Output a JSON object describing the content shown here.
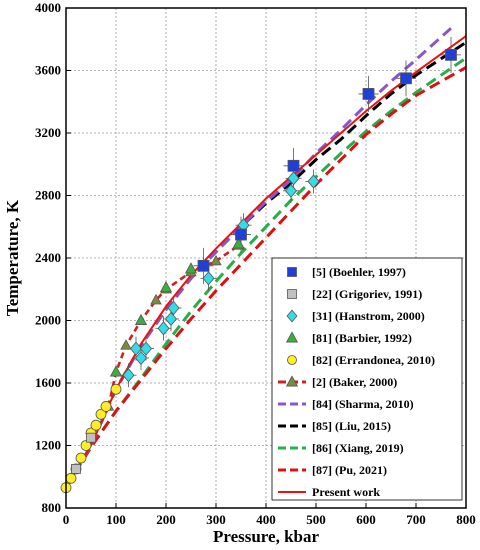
{
  "chart_data": {
    "type": "scatter",
    "xlabel": "Pressure, kbar",
    "ylabel": "Temperature, K",
    "xlim": [
      0,
      800
    ],
    "ylim": [
      800,
      4000
    ],
    "x_ticks": [
      "0",
      "100",
      "200",
      "300",
      "400",
      "500",
      "600",
      "700",
      "800"
    ],
    "y_ticks": [
      "800",
      "1200",
      "1600",
      "2000",
      "2400",
      "2800",
      "3200",
      "3600",
      "4000"
    ],
    "x_tick_values": [
      0,
      100,
      200,
      300,
      400,
      500,
      600,
      700,
      800
    ],
    "y_tick_values": [
      800,
      1200,
      1600,
      2000,
      2400,
      2800,
      3200,
      3600,
      4000
    ],
    "grid": true,
    "legend_position": "lower-right",
    "colors": {
      "boehler": "#1f3fd6",
      "grigoriev": "#c0c0c0",
      "hanstrom": "#33dde8",
      "barbier": "#3cae3c",
      "errandonea": "#ffee22",
      "baker": "#cc2222",
      "baker_marker": "#7a8c3a",
      "sharma": "#8855cc",
      "liu": "#000000",
      "xiang": "#22b04a",
      "pu": "#dd1111",
      "present": "#ee1111"
    },
    "series": [
      {
        "name": "[5] (Boehler, 1997)",
        "marker": "square",
        "color": "#1f3fd6",
        "x": [
          275,
          350,
          455,
          605,
          680,
          770
        ],
        "y": [
          2350,
          2550,
          2990,
          3450,
          3550,
          3700
        ]
      },
      {
        "name": "[22] (Grigoriev, 1991)",
        "marker": "square",
        "color": "#c0c0c0",
        "x": [
          20,
          50
        ],
        "y": [
          1050,
          1250
        ]
      },
      {
        "name": "[31] (Hanstrom, 2000)",
        "marker": "diamond",
        "color": "#33dde8",
        "x": [
          125,
          140,
          150,
          160,
          195,
          210,
          215,
          285,
          355,
          450,
          455,
          495
        ],
        "y": [
          1650,
          1820,
          1760,
          1820,
          1950,
          2010,
          2080,
          2270,
          2610,
          2830,
          2910,
          2890
        ]
      },
      {
        "name": "[81] (Barbier, 1992)",
        "marker": "triangle",
        "color": "#3cae3c",
        "x": [
          100,
          150,
          200,
          250,
          345
        ],
        "y": [
          1670,
          2000,
          2210,
          2330,
          2490
        ]
      },
      {
        "name": "[82] (Errandonea, 2010)",
        "marker": "circle",
        "color": "#ffee22",
        "x": [
          0,
          10,
          20,
          30,
          40,
          50,
          60,
          70,
          80,
          100
        ],
        "y": [
          930,
          990,
          1050,
          1120,
          1200,
          1280,
          1330,
          1400,
          1450,
          1560
        ]
      },
      {
        "name": "[2] (Baker, 2000)",
        "line": "dashed",
        "marker": "triangle",
        "color": "#cc2222",
        "x": [
          85,
          100,
          120,
          150,
          180,
          200,
          250,
          300,
          345
        ],
        "y": [
          1450,
          1670,
          1840,
          2000,
          2130,
          2200,
          2310,
          2380,
          2480
        ]
      },
      {
        "name": "[84] (Sharma, 2010)",
        "line": "dashed",
        "color": "#8855cc",
        "x": [
          0,
          50,
          100,
          150,
          200,
          250,
          300,
          350,
          400,
          450,
          500,
          550,
          600,
          650,
          700,
          770
        ],
        "y": [
          930,
          1200,
          1560,
          1840,
          2070,
          2270,
          2440,
          2600,
          2760,
          2900,
          3070,
          3220,
          3380,
          3530,
          3670,
          3870
        ]
      },
      {
        "name": "[85] (Liu, 2015)",
        "line": "dashed",
        "color": "#000000",
        "x": [
          0,
          50,
          100,
          150,
          200,
          250,
          300,
          350,
          400,
          450,
          500,
          550,
          600,
          650,
          700,
          800
        ],
        "y": [
          930,
          1200,
          1560,
          1840,
          2070,
          2270,
          2440,
          2600,
          2750,
          2880,
          3030,
          3160,
          3310,
          3450,
          3570,
          3780
        ]
      },
      {
        "name": "[86] (Xiang, 2019)",
        "line": "dashed",
        "color": "#22b04a",
        "x": [
          0,
          50,
          100,
          150,
          200,
          250,
          300,
          350,
          400,
          450,
          500,
          550,
          600,
          650,
          700,
          800
        ],
        "y": [
          930,
          1190,
          1420,
          1630,
          1850,
          2060,
          2250,
          2430,
          2600,
          2770,
          2920,
          3070,
          3210,
          3340,
          3460,
          3680
        ]
      },
      {
        "name": "[87] (Pu, 2021)",
        "line": "dashed",
        "color": "#dd1111",
        "x": [
          0,
          50,
          100,
          150,
          200,
          250,
          300,
          350,
          400,
          450,
          500,
          550,
          600,
          650,
          700,
          800
        ],
        "y": [
          930,
          1190,
          1420,
          1620,
          1820,
          2010,
          2190,
          2360,
          2530,
          2700,
          2870,
          3030,
          3190,
          3320,
          3440,
          3620
        ]
      },
      {
        "name": "Present work",
        "line": "solid",
        "color": "#ee1111",
        "x": [
          0,
          50,
          100,
          150,
          200,
          250,
          300,
          350,
          400,
          450,
          500,
          550,
          600,
          650,
          700,
          800
        ],
        "y": [
          930,
          1200,
          1560,
          1850,
          2090,
          2290,
          2460,
          2620,
          2780,
          2920,
          3060,
          3200,
          3340,
          3470,
          3590,
          3820
        ]
      }
    ]
  }
}
